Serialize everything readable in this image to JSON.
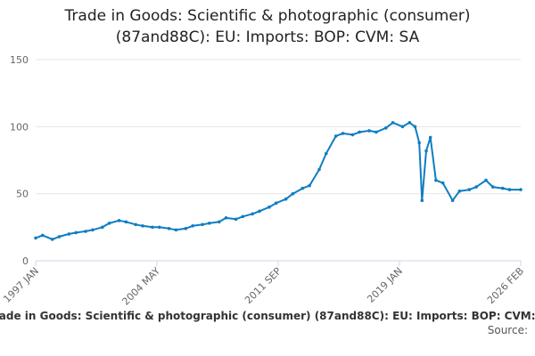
{
  "chart_data": {
    "type": "line",
    "title_lines": [
      "Trade in Goods: Scientific & photographic (consumer)",
      "(87and88C): EU: Imports: BOP: CVM: SA"
    ],
    "xlabel": "",
    "ylabel": "",
    "ylim": [
      0,
      150
    ],
    "yticks": [
      0,
      50,
      100,
      150
    ],
    "xticks": [
      "1997 JAN",
      "2004 MAY",
      "2011 SEP",
      "2019 JAN",
      "2026 FEB"
    ],
    "xrange": [
      "1997-01",
      "2026-02"
    ],
    "grid": true,
    "line_color": "#0f7dc2",
    "legend": "Trade in Goods: Scientific & photographic (consumer) (87and88C): EU: Imports: BOP: CVM: SA",
    "source_label": "Source:",
    "series": [
      {
        "name": "Trade in Goods: Scientific & photographic (consumer) (87and88C): EU: Imports: BOP: CVM: SA",
        "x": [
          "1997-01",
          "1997-06",
          "1998-01",
          "1998-06",
          "1999-01",
          "1999-06",
          "2000-01",
          "2000-06",
          "2001-01",
          "2001-06",
          "2002-01",
          "2002-06",
          "2003-01",
          "2003-06",
          "2004-01",
          "2004-06",
          "2005-01",
          "2005-06",
          "2006-01",
          "2006-06",
          "2007-01",
          "2007-06",
          "2008-01",
          "2008-06",
          "2009-01",
          "2009-06",
          "2010-01",
          "2010-06",
          "2011-01",
          "2011-06",
          "2012-01",
          "2012-06",
          "2013-01",
          "2013-06",
          "2014-01",
          "2014-06",
          "2015-01",
          "2015-06",
          "2016-01",
          "2016-06",
          "2017-01",
          "2017-06",
          "2018-01",
          "2018-06",
          "2019-01",
          "2019-06",
          "2019-10",
          "2020-01",
          "2020-03",
          "2020-06",
          "2020-09",
          "2021-01",
          "2021-06",
          "2022-01",
          "2022-06",
          "2023-01",
          "2023-06",
          "2024-01",
          "2024-06",
          "2025-01",
          "2025-06",
          "2026-02"
        ],
        "values": [
          17,
          19,
          16,
          18,
          20,
          21,
          22,
          23,
          25,
          28,
          30,
          29,
          27,
          26,
          25,
          25,
          24,
          23,
          24,
          26,
          27,
          28,
          29,
          32,
          31,
          33,
          35,
          37,
          40,
          43,
          46,
          50,
          54,
          56,
          68,
          80,
          93,
          95,
          94,
          96,
          97,
          96,
          99,
          103,
          100,
          103,
          100,
          88,
          45,
          82,
          92,
          60,
          58,
          45,
          52,
          53,
          55,
          60,
          55,
          54,
          53,
          53
        ]
      }
    ]
  }
}
